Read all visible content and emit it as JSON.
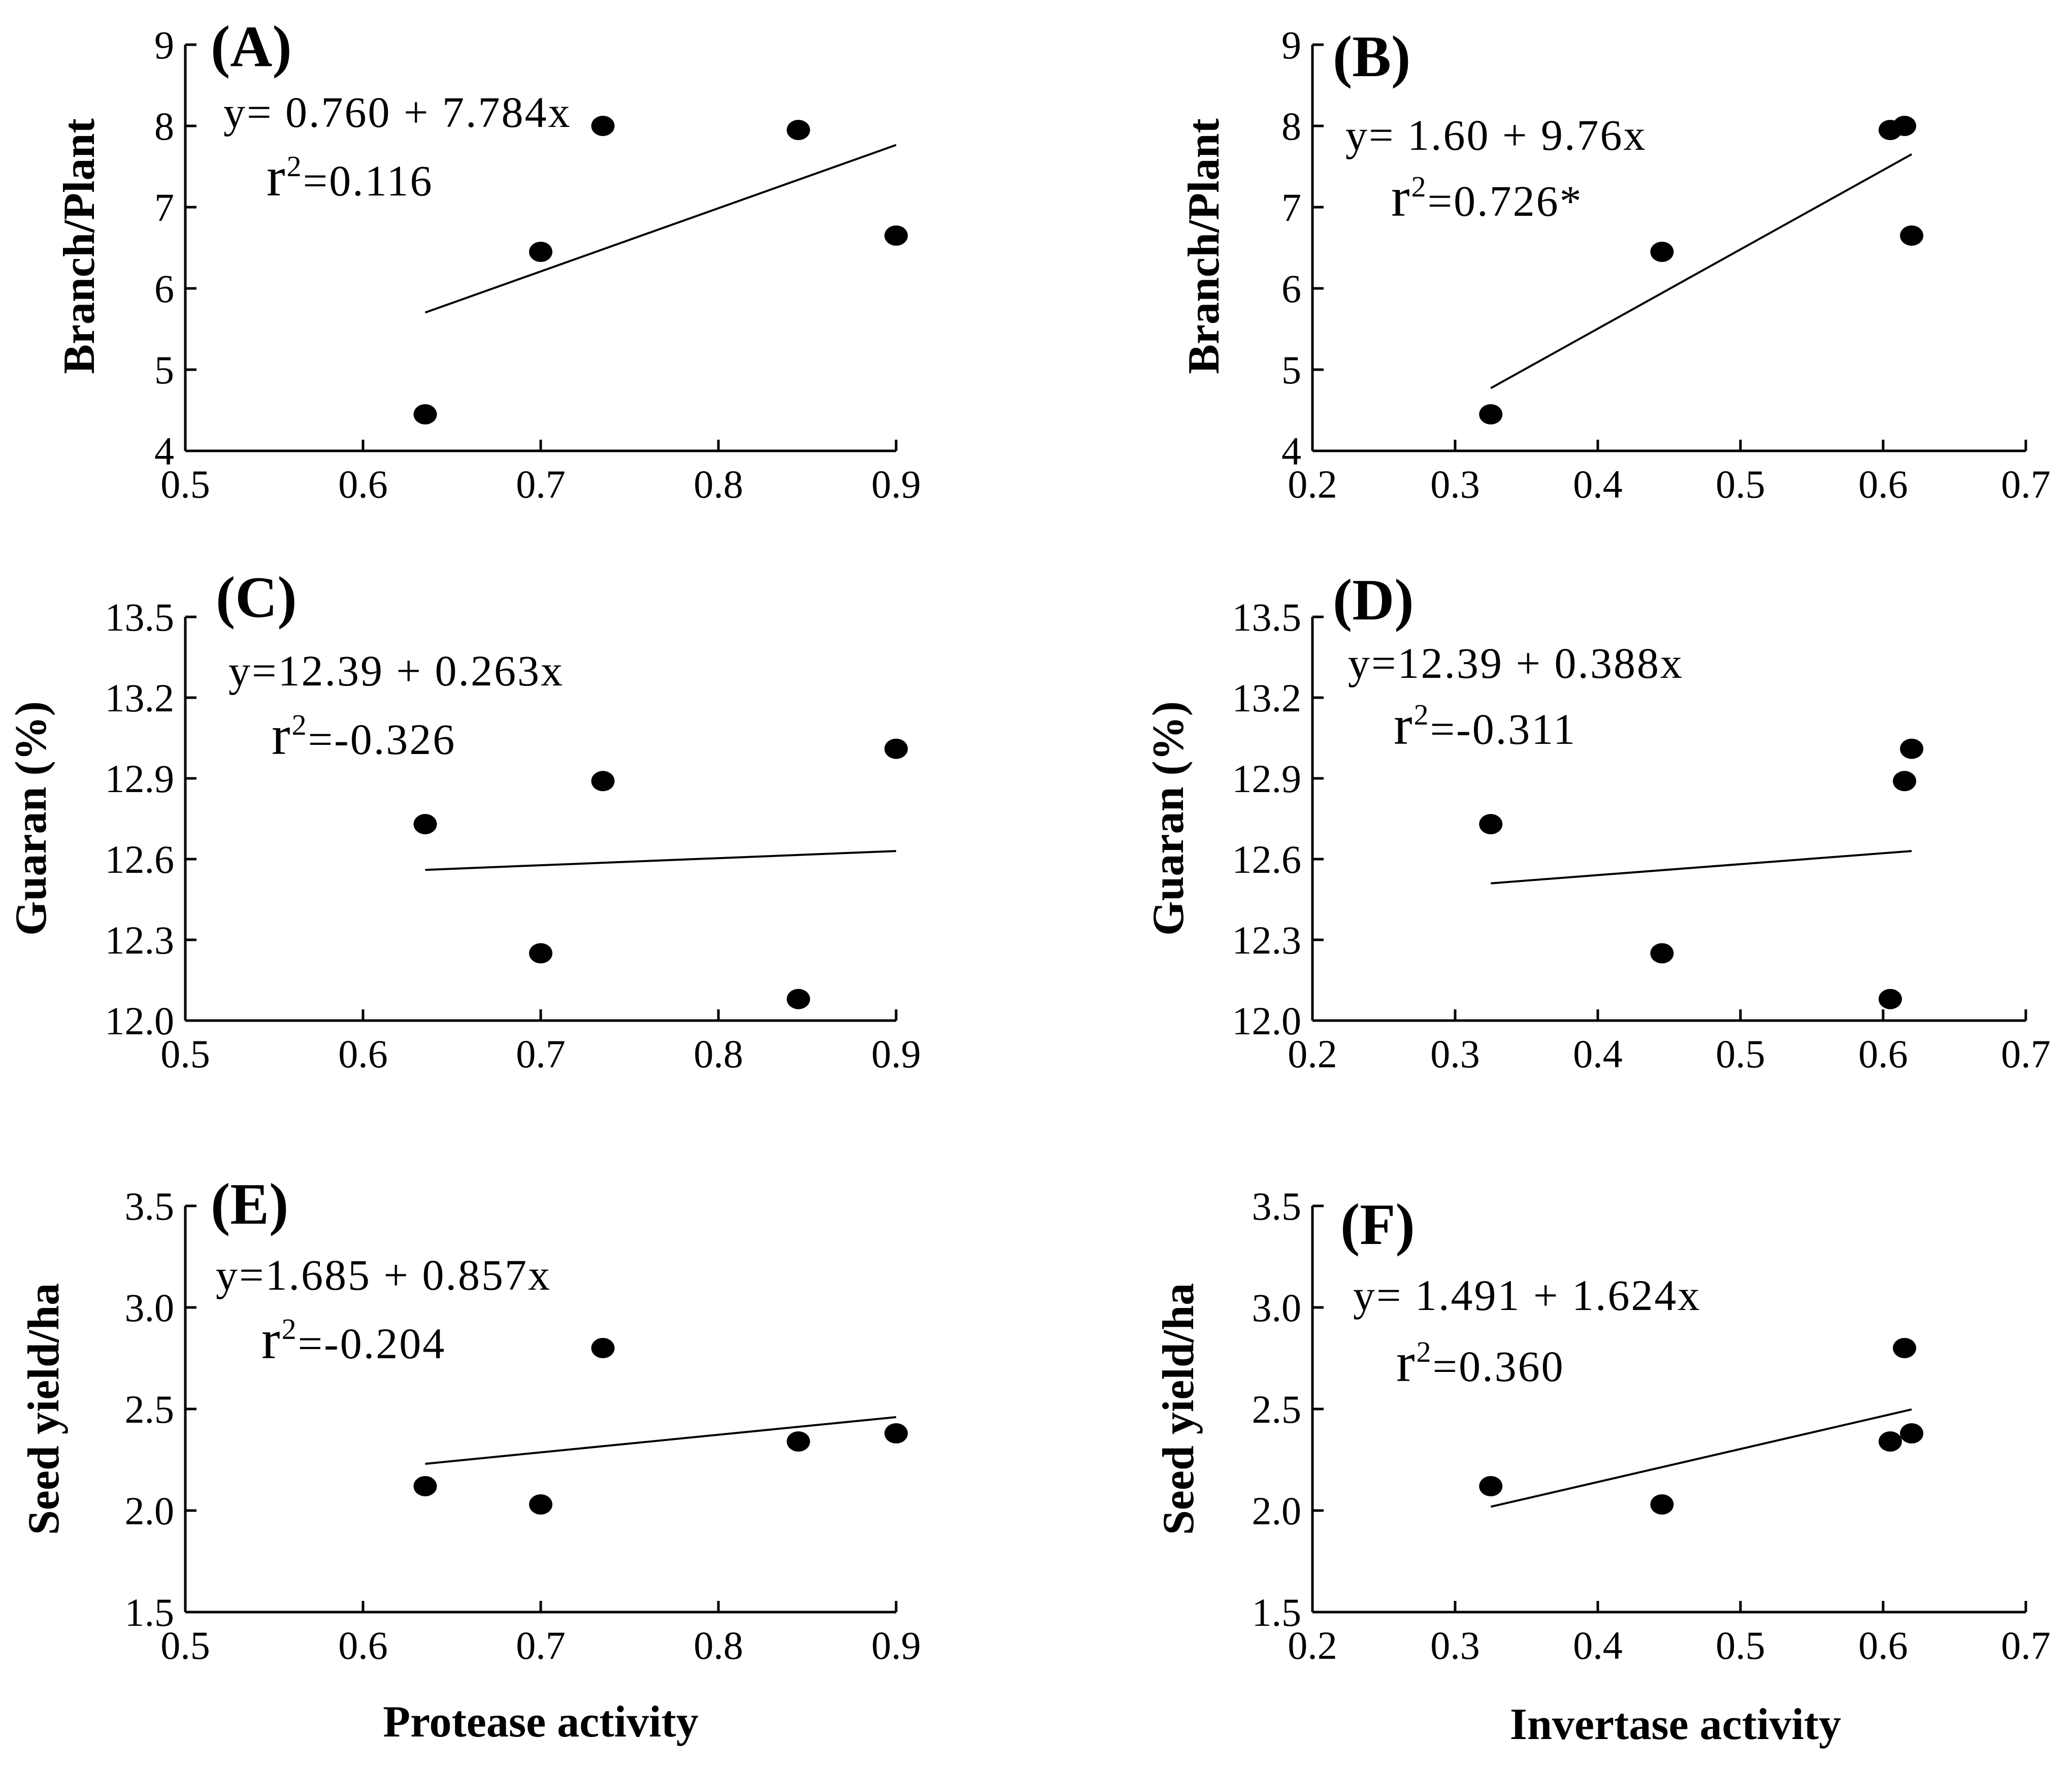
{
  "figure": {
    "x_axis_titles": {
      "left": "Protease activity",
      "right": "Invertase activity"
    }
  },
  "chart_data": [
    {
      "type": "scatter",
      "panel": "(A)",
      "xlabel": "",
      "ylabel": "Branch/Plant",
      "xlim": [
        0.5,
        0.9
      ],
      "ylim": [
        4,
        9
      ],
      "x_ticks": [
        "0.5",
        "0.6",
        "0.7",
        "0.8",
        "0.9"
      ],
      "y_ticks": [
        "4",
        "5",
        "6",
        "7",
        "8",
        "9"
      ],
      "points": [
        {
          "x": 0.635,
          "y": 4.45
        },
        {
          "x": 0.7,
          "y": 6.45
        },
        {
          "x": 0.735,
          "y": 8.0
        },
        {
          "x": 0.845,
          "y": 7.95
        },
        {
          "x": 0.9,
          "y": 6.65
        }
      ],
      "fit": {
        "intercept": 0.76,
        "slope": 7.784,
        "x_range": [
          0.635,
          0.9
        ]
      },
      "equation": "y= 0.760 + 7.784x",
      "r2_value": "=0.116"
    },
    {
      "type": "scatter",
      "panel": "(B)",
      "xlabel": "",
      "ylabel": "Branch/Plant",
      "xlim": [
        0.2,
        0.7
      ],
      "ylim": [
        4,
        9
      ],
      "x_ticks": [
        "0.2",
        "0.3",
        "0.4",
        "0.5",
        "0.6",
        "0.7"
      ],
      "y_ticks": [
        "4",
        "5",
        "6",
        "7",
        "8",
        "9"
      ],
      "points": [
        {
          "x": 0.325,
          "y": 4.45
        },
        {
          "x": 0.445,
          "y": 6.45
        },
        {
          "x": 0.605,
          "y": 7.95
        },
        {
          "x": 0.615,
          "y": 8.0
        },
        {
          "x": 0.62,
          "y": 6.65
        }
      ],
      "fit": {
        "intercept": 1.6,
        "slope": 9.76,
        "x_range": [
          0.325,
          0.62
        ]
      },
      "equation": "y= 1.60 + 9.76x",
      "r2_value": "=0.726*"
    },
    {
      "type": "scatter",
      "panel": "(C)",
      "xlabel": "",
      "ylabel": "Guaran (%)",
      "xlim": [
        0.5,
        0.9
      ],
      "ylim": [
        12.0,
        13.5
      ],
      "x_ticks": [
        "0.5",
        "0.6",
        "0.7",
        "0.8",
        "0.9"
      ],
      "y_ticks": [
        "12.0",
        "12.3",
        "12.6",
        "12.9",
        "13.2",
        "13.5"
      ],
      "points": [
        {
          "x": 0.635,
          "y": 12.73
        },
        {
          "x": 0.7,
          "y": 12.25
        },
        {
          "x": 0.735,
          "y": 12.89
        },
        {
          "x": 0.845,
          "y": 12.08
        },
        {
          "x": 0.9,
          "y": 13.01
        }
      ],
      "fit": {
        "y_start": 12.56,
        "y_end": 12.63,
        "x_range": [
          0.635,
          0.9
        ]
      },
      "equation": "y=12.39 + 0.263x",
      "r2_value": "=-0.326"
    },
    {
      "type": "scatter",
      "panel": "(D)",
      "xlabel": "",
      "ylabel": "Guaran (%)",
      "xlim": [
        0.2,
        0.7
      ],
      "ylim": [
        12.0,
        13.5
      ],
      "x_ticks": [
        "0.2",
        "0.3",
        "0.4",
        "0.5",
        "0.6",
        "0.7"
      ],
      "y_ticks": [
        "12.0",
        "12.3",
        "12.6",
        "12.9",
        "13.2",
        "13.5"
      ],
      "points": [
        {
          "x": 0.325,
          "y": 12.73
        },
        {
          "x": 0.445,
          "y": 12.25
        },
        {
          "x": 0.605,
          "y": 12.08
        },
        {
          "x": 0.615,
          "y": 12.89
        },
        {
          "x": 0.62,
          "y": 13.01
        }
      ],
      "fit": {
        "y_start": 12.51,
        "y_end": 12.63,
        "x_range": [
          0.325,
          0.62
        ]
      },
      "equation": "y=12.39 + 0.388x",
      "r2_value": "=-0.311"
    },
    {
      "type": "scatter",
      "panel": "(E)",
      "xlabel": "",
      "ylabel": "Seed yield/ha",
      "xlim": [
        0.5,
        0.9
      ],
      "ylim": [
        1.5,
        3.5
      ],
      "x_ticks": [
        "0.5",
        "0.6",
        "0.7",
        "0.8",
        "0.9"
      ],
      "y_ticks": [
        "1.5",
        "2.0",
        "2.5",
        "3.0",
        "3.5"
      ],
      "points": [
        {
          "x": 0.635,
          "y": 2.12
        },
        {
          "x": 0.7,
          "y": 2.03
        },
        {
          "x": 0.735,
          "y": 2.8
        },
        {
          "x": 0.845,
          "y": 2.34
        },
        {
          "x": 0.9,
          "y": 2.38
        }
      ],
      "fit": {
        "y_start": 2.23,
        "y_end": 2.46,
        "x_range": [
          0.635,
          0.9
        ]
      },
      "equation": "y=1.685 + 0.857x",
      "r2_value": "=-0.204"
    },
    {
      "type": "scatter",
      "panel": "(F)",
      "xlabel": "",
      "ylabel": "Seed yield/ha",
      "xlim": [
        0.2,
        0.7
      ],
      "ylim": [
        1.5,
        3.5
      ],
      "x_ticks": [
        "0.2",
        "0.3",
        "0.4",
        "0.5",
        "0.6",
        "0.7"
      ],
      "y_ticks": [
        "1.5",
        "2.0",
        "2.5",
        "3.0",
        "3.5"
      ],
      "points": [
        {
          "x": 0.325,
          "y": 2.12
        },
        {
          "x": 0.445,
          "y": 2.03
        },
        {
          "x": 0.605,
          "y": 2.34
        },
        {
          "x": 0.615,
          "y": 2.8
        },
        {
          "x": 0.62,
          "y": 2.38
        }
      ],
      "fit": {
        "intercept": 1.491,
        "slope": 1.624,
        "x_range": [
          0.325,
          0.62
        ]
      },
      "equation": "y= 1.491 + 1.624x",
      "r2_value": "=0.360"
    }
  ]
}
